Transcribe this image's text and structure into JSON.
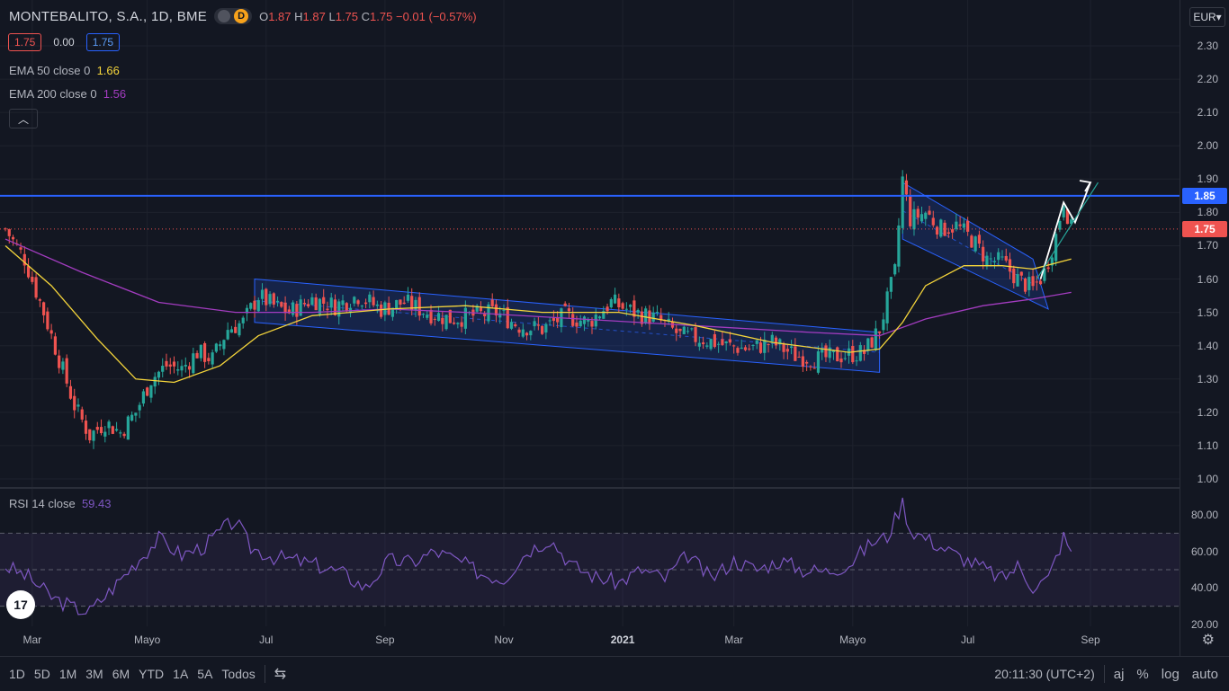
{
  "header": {
    "symbol": "MONTEBALITO, S.A.",
    "interval": "1D",
    "exchange": "BME",
    "d_badge": "D",
    "o_label": "O",
    "o_value": "1.87",
    "h_label": "H",
    "h_value": "1.87",
    "l_label": "L",
    "l_value": "1.75",
    "c_label": "C",
    "c_value": "1.75",
    "change": "−0.01 (−0.57%)"
  },
  "price_boxes": {
    "bid": "1.75",
    "spread": "0.00",
    "ask": "1.75"
  },
  "indicators": {
    "ema50_label": "EMA 50 close 0",
    "ema50_value": "1.66",
    "ema200_label": "EMA 200 close 0",
    "ema200_value": "1.56",
    "rsi_label": "RSI 14 close",
    "rsi_value": "59.43"
  },
  "currency": "EUR",
  "price_axis_labels": [
    "2.30",
    "2.20",
    "2.10",
    "2.00",
    "1.90",
    "1.80",
    "1.70",
    "1.60",
    "1.50",
    "1.40",
    "1.30",
    "1.20",
    "1.10",
    "1.00"
  ],
  "rsi_axis_labels": [
    "80.00",
    "60.00",
    "40.00",
    "20.00"
  ],
  "badges": {
    "hline": "1.85",
    "last": "1.75"
  },
  "time_labels": [
    "Mar",
    "Mayo",
    "Jul",
    "Sep",
    "Nov",
    "2021",
    "Mar",
    "Mayo",
    "Jul",
    "Sep"
  ],
  "timeframes": [
    "1D",
    "5D",
    "1M",
    "3M",
    "6M",
    "YTD",
    "1A",
    "5A",
    "Todos"
  ],
  "clock": "20:11:30 (UTC+2)",
  "right_controls": [
    "aj",
    "%",
    "log",
    "auto"
  ],
  "logo_text": "17",
  "colors": {
    "up": "#26a69a",
    "down": "#ef5350",
    "ema50": "#f5d53b",
    "ema200": "#a33cc0",
    "rsi": "#7e57c2",
    "hline": "#2962ff"
  },
  "chart_data": {
    "type": "candlestick",
    "title": "MONTEBALITO, S.A. · 1D · BME",
    "ylim": [
      1.0,
      2.3
    ],
    "horizontal_line": 1.85,
    "last_price": 1.75,
    "x_ticks": [
      "Mar",
      "Mayo",
      "Jul",
      "Sep",
      "Nov",
      "2021",
      "Mar",
      "Mayo",
      "Jul",
      "Sep"
    ],
    "close_path": [
      {
        "t": 0,
        "v": 1.75
      },
      {
        "t": 5,
        "v": 1.66
      },
      {
        "t": 10,
        "v": 1.5
      },
      {
        "t": 14,
        "v": 1.36
      },
      {
        "t": 18,
        "v": 1.22
      },
      {
        "t": 22,
        "v": 1.13
      },
      {
        "t": 26,
        "v": 1.17
      },
      {
        "t": 30,
        "v": 1.14
      },
      {
        "t": 34,
        "v": 1.2
      },
      {
        "t": 38,
        "v": 1.3
      },
      {
        "t": 42,
        "v": 1.34
      },
      {
        "t": 46,
        "v": 1.33
      },
      {
        "t": 50,
        "v": 1.38
      },
      {
        "t": 54,
        "v": 1.36
      },
      {
        "t": 58,
        "v": 1.45
      },
      {
        "t": 62,
        "v": 1.47
      },
      {
        "t": 66,
        "v": 1.55
      },
      {
        "t": 70,
        "v": 1.52
      },
      {
        "t": 74,
        "v": 1.5
      },
      {
        "t": 80,
        "v": 1.54
      },
      {
        "t": 86,
        "v": 1.52
      },
      {
        "t": 92,
        "v": 1.55
      },
      {
        "t": 98,
        "v": 1.51
      },
      {
        "t": 104,
        "v": 1.53
      },
      {
        "t": 110,
        "v": 1.5
      },
      {
        "t": 116,
        "v": 1.48
      },
      {
        "t": 122,
        "v": 1.49
      },
      {
        "t": 128,
        "v": 1.5
      },
      {
        "t": 134,
        "v": 1.46
      },
      {
        "t": 140,
        "v": 1.45
      },
      {
        "t": 146,
        "v": 1.49
      },
      {
        "t": 152,
        "v": 1.47
      },
      {
        "t": 158,
        "v": 1.53
      },
      {
        "t": 164,
        "v": 1.5
      },
      {
        "t": 170,
        "v": 1.48
      },
      {
        "t": 176,
        "v": 1.43
      },
      {
        "t": 182,
        "v": 1.42
      },
      {
        "t": 188,
        "v": 1.4
      },
      {
        "t": 194,
        "v": 1.39
      },
      {
        "t": 200,
        "v": 1.41
      },
      {
        "t": 206,
        "v": 1.37
      },
      {
        "t": 212,
        "v": 1.36
      },
      {
        "t": 218,
        "v": 1.37
      },
      {
        "t": 224,
        "v": 1.38
      },
      {
        "t": 228,
        "v": 1.45
      },
      {
        "t": 232,
        "v": 1.62
      },
      {
        "t": 234,
        "v": 1.9
      },
      {
        "t": 236,
        "v": 1.78
      },
      {
        "t": 240,
        "v": 1.8
      },
      {
        "t": 244,
        "v": 1.75
      },
      {
        "t": 248,
        "v": 1.76
      },
      {
        "t": 252,
        "v": 1.72
      },
      {
        "t": 256,
        "v": 1.66
      },
      {
        "t": 260,
        "v": 1.65
      },
      {
        "t": 264,
        "v": 1.6
      },
      {
        "t": 268,
        "v": 1.57
      },
      {
        "t": 271,
        "v": 1.62
      },
      {
        "t": 274,
        "v": 1.73
      },
      {
        "t": 276,
        "v": 1.84
      },
      {
        "t": 278,
        "v": 1.75
      }
    ],
    "ema50": [
      {
        "t": 0,
        "v": 1.7
      },
      {
        "t": 12,
        "v": 1.58
      },
      {
        "t": 24,
        "v": 1.42
      },
      {
        "t": 34,
        "v": 1.3
      },
      {
        "t": 44,
        "v": 1.29
      },
      {
        "t": 56,
        "v": 1.34
      },
      {
        "t": 66,
        "v": 1.43
      },
      {
        "t": 80,
        "v": 1.49
      },
      {
        "t": 100,
        "v": 1.51
      },
      {
        "t": 120,
        "v": 1.52
      },
      {
        "t": 140,
        "v": 1.5
      },
      {
        "t": 160,
        "v": 1.5
      },
      {
        "t": 180,
        "v": 1.46
      },
      {
        "t": 200,
        "v": 1.41
      },
      {
        "t": 220,
        "v": 1.38
      },
      {
        "t": 228,
        "v": 1.39
      },
      {
        "t": 234,
        "v": 1.47
      },
      {
        "t": 240,
        "v": 1.58
      },
      {
        "t": 250,
        "v": 1.64
      },
      {
        "t": 260,
        "v": 1.64
      },
      {
        "t": 268,
        "v": 1.63
      },
      {
        "t": 278,
        "v": 1.66
      }
    ],
    "ema200": [
      {
        "t": 0,
        "v": 1.72
      },
      {
        "t": 20,
        "v": 1.62
      },
      {
        "t": 40,
        "v": 1.53
      },
      {
        "t": 60,
        "v": 1.5
      },
      {
        "t": 80,
        "v": 1.5
      },
      {
        "t": 100,
        "v": 1.51
      },
      {
        "t": 120,
        "v": 1.5
      },
      {
        "t": 150,
        "v": 1.48
      },
      {
        "t": 180,
        "v": 1.46
      },
      {
        "t": 210,
        "v": 1.44
      },
      {
        "t": 228,
        "v": 1.43
      },
      {
        "t": 240,
        "v": 1.48
      },
      {
        "t": 255,
        "v": 1.52
      },
      {
        "t": 268,
        "v": 1.54
      },
      {
        "t": 278,
        "v": 1.56
      }
    ],
    "channels": [
      {
        "name": "descending-channel-1",
        "upper": [
          [
            65,
            1.6
          ],
          [
            228,
            1.44
          ]
        ],
        "lower": [
          [
            65,
            1.47
          ],
          [
            228,
            1.32
          ]
        ]
      },
      {
        "name": "descending-channel-2",
        "upper": [
          [
            234,
            1.89
          ],
          [
            268,
            1.66
          ]
        ],
        "lower": [
          [
            234,
            1.72
          ],
          [
            272,
            1.51
          ]
        ]
      }
    ],
    "projection_arrow": [
      [
        270,
        1.6
      ],
      [
        276,
        1.83
      ],
      [
        279,
        1.77
      ],
      [
        283,
        1.89
      ]
    ],
    "rsi": {
      "ylim": [
        20,
        80
      ],
      "levels": [
        30,
        50,
        70
      ],
      "last": 59.43,
      "path": [
        {
          "t": 0,
          "v": 52
        },
        {
          "t": 6,
          "v": 46
        },
        {
          "t": 12,
          "v": 35
        },
        {
          "t": 18,
          "v": 29
        },
        {
          "t": 22,
          "v": 27
        },
        {
          "t": 28,
          "v": 40
        },
        {
          "t": 34,
          "v": 54
        },
        {
          "t": 40,
          "v": 67
        },
        {
          "t": 46,
          "v": 58
        },
        {
          "t": 52,
          "v": 63
        },
        {
          "t": 56,
          "v": 71
        },
        {
          "t": 60,
          "v": 77
        },
        {
          "t": 64,
          "v": 62
        },
        {
          "t": 70,
          "v": 57
        },
        {
          "t": 76,
          "v": 55
        },
        {
          "t": 82,
          "v": 52
        },
        {
          "t": 88,
          "v": 48
        },
        {
          "t": 94,
          "v": 40
        },
        {
          "t": 100,
          "v": 55
        },
        {
          "t": 106,
          "v": 54
        },
        {
          "t": 112,
          "v": 60
        },
        {
          "t": 118,
          "v": 55
        },
        {
          "t": 124,
          "v": 48
        },
        {
          "t": 130,
          "v": 45
        },
        {
          "t": 136,
          "v": 60
        },
        {
          "t": 142,
          "v": 67
        },
        {
          "t": 148,
          "v": 52
        },
        {
          "t": 154,
          "v": 46
        },
        {
          "t": 160,
          "v": 43
        },
        {
          "t": 166,
          "v": 50
        },
        {
          "t": 172,
          "v": 45
        },
        {
          "t": 178,
          "v": 58
        },
        {
          "t": 184,
          "v": 45
        },
        {
          "t": 190,
          "v": 55
        },
        {
          "t": 196,
          "v": 50
        },
        {
          "t": 202,
          "v": 55
        },
        {
          "t": 208,
          "v": 50
        },
        {
          "t": 214,
          "v": 49
        },
        {
          "t": 220,
          "v": 53
        },
        {
          "t": 226,
          "v": 65
        },
        {
          "t": 230,
          "v": 68
        },
        {
          "t": 234,
          "v": 87
        },
        {
          "t": 236,
          "v": 72
        },
        {
          "t": 242,
          "v": 65
        },
        {
          "t": 248,
          "v": 58
        },
        {
          "t": 254,
          "v": 52
        },
        {
          "t": 260,
          "v": 45
        },
        {
          "t": 264,
          "v": 52
        },
        {
          "t": 268,
          "v": 41
        },
        {
          "t": 272,
          "v": 45
        },
        {
          "t": 276,
          "v": 68
        },
        {
          "t": 278,
          "v": 60
        }
      ]
    }
  }
}
